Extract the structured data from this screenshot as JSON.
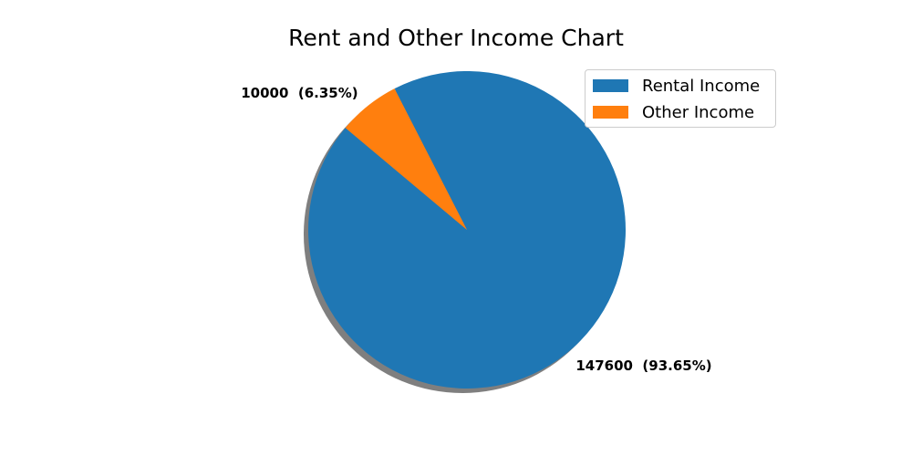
{
  "chart_data": {
    "type": "pie",
    "title": "Rent and Other Income Chart",
    "categories": [
      "Rental Income",
      "Other Income"
    ],
    "values": [
      147600,
      10000
    ],
    "data_labels": [
      "147600  (93.65%)",
      "10000  (6.35%)"
    ],
    "colors": [
      "#1f77b4",
      "#ff7f0e"
    ],
    "legend": {
      "position": "top-right",
      "entries": [
        "Rental Income",
        "Other Income"
      ]
    },
    "shadow": true
  }
}
